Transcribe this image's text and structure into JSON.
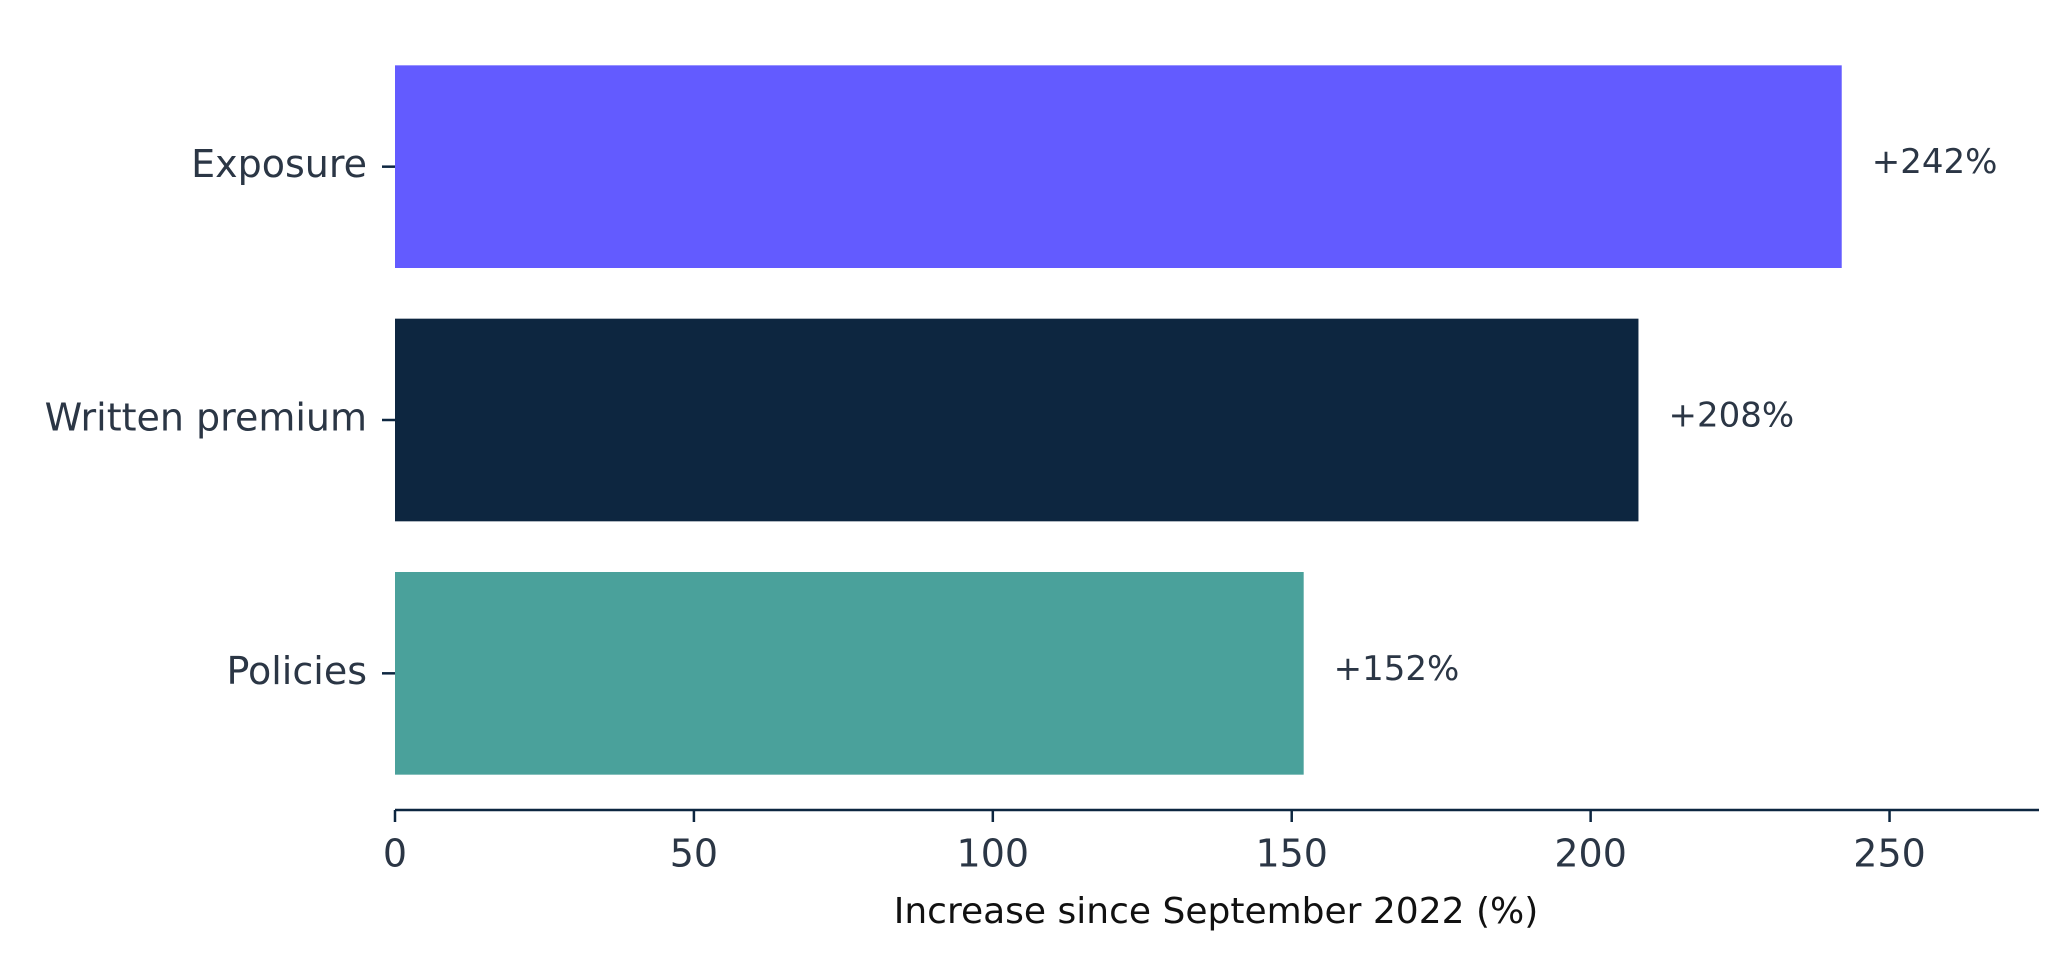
{
  "chart_data": {
    "type": "bar",
    "orientation": "horizontal",
    "categories": [
      "Exposure",
      "Written premium",
      "Policies"
    ],
    "values": [
      242,
      208,
      152
    ],
    "value_labels": [
      "+242%",
      "+208%",
      "+152%"
    ],
    "colors": [
      "#635bff",
      "#0d2640",
      "#4aa19b"
    ],
    "xlabel": "Increase since September 2022 (%)",
    "xlim": [
      0,
      275
    ],
    "xticks": [
      0,
      50,
      100,
      150,
      200,
      250
    ],
    "grid": false
  }
}
